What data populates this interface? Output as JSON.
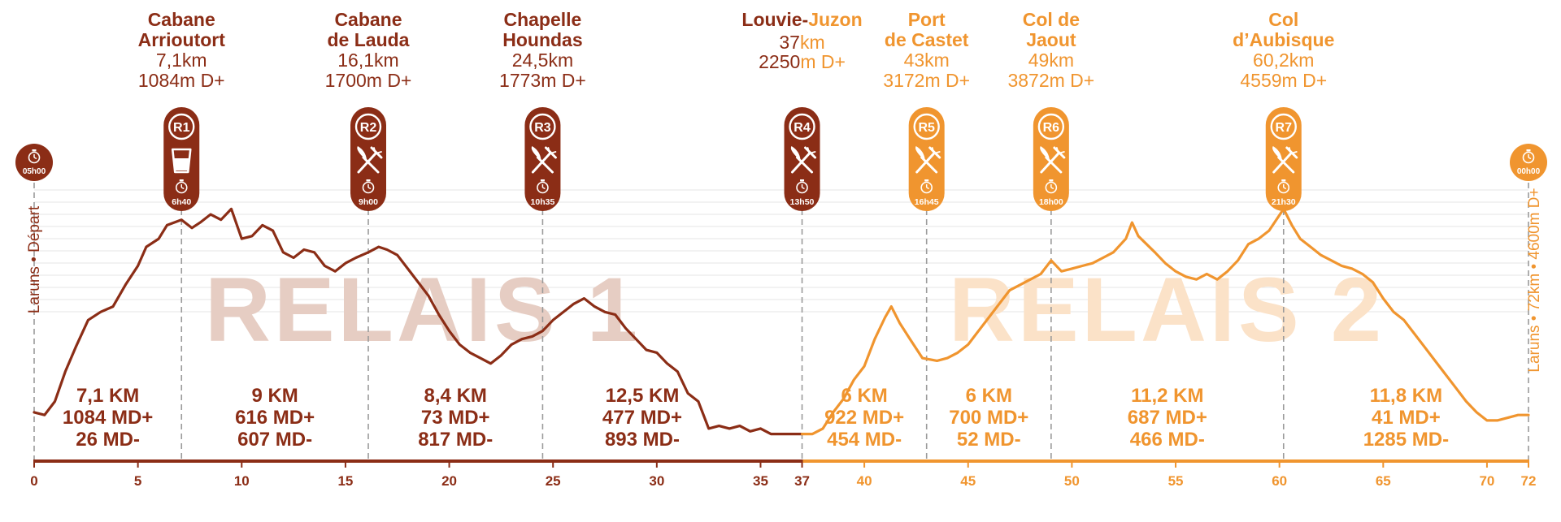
{
  "colors": {
    "relay1": "#8b2d16",
    "relay2": "#f0952f",
    "watermark1": "#e6cdc3",
    "watermark2": "#fbe2c8",
    "grid": "#e6e6e6",
    "marker_line": "#9a9a9a"
  },
  "chart_data": {
    "type": "area",
    "xlim": [
      0,
      72
    ],
    "ylim": [
      0,
      4600
    ],
    "grid": true,
    "watermarks": [
      "RELAIS 1",
      "RELAIS 2"
    ],
    "relay_split_km": 37,
    "x_ticks": [
      "0",
      "5",
      "10",
      "15",
      "20",
      "25",
      "30",
      "35",
      "37",
      "40",
      "45",
      "50",
      "55",
      "60",
      "65",
      "70",
      "72"
    ],
    "left_axis_label": "Laruns • Départ",
    "right_axis_label": "Laruns • 72km • 4600m D+",
    "profile": [
      [
        0,
        0.18
      ],
      [
        0.5,
        0.17
      ],
      [
        1,
        0.22
      ],
      [
        1.5,
        0.33
      ],
      [
        2,
        0.42
      ],
      [
        2.6,
        0.52
      ],
      [
        3.2,
        0.55
      ],
      [
        3.8,
        0.57
      ],
      [
        4.4,
        0.65
      ],
      [
        5,
        0.72
      ],
      [
        5.4,
        0.79
      ],
      [
        6,
        0.82
      ],
      [
        6.4,
        0.87
      ],
      [
        7.1,
        0.89
      ],
      [
        7.6,
        0.86
      ],
      [
        8,
        0.88
      ],
      [
        8.5,
        0.91
      ],
      [
        9,
        0.89
      ],
      [
        9.5,
        0.93
      ],
      [
        10,
        0.82
      ],
      [
        10.5,
        0.83
      ],
      [
        11,
        0.87
      ],
      [
        11.5,
        0.85
      ],
      [
        12,
        0.77
      ],
      [
        12.5,
        0.75
      ],
      [
        13,
        0.78
      ],
      [
        13.5,
        0.77
      ],
      [
        14,
        0.72
      ],
      [
        14.5,
        0.7
      ],
      [
        15,
        0.73
      ],
      [
        15.5,
        0.75
      ],
      [
        16.1,
        0.77
      ],
      [
        16.6,
        0.79
      ],
      [
        17,
        0.78
      ],
      [
        17.5,
        0.76
      ],
      [
        18,
        0.71
      ],
      [
        18.5,
        0.66
      ],
      [
        19,
        0.61
      ],
      [
        19.5,
        0.54
      ],
      [
        20,
        0.48
      ],
      [
        20.5,
        0.43
      ],
      [
        21,
        0.4
      ],
      [
        21.5,
        0.38
      ],
      [
        22,
        0.36
      ],
      [
        22.5,
        0.39
      ],
      [
        23,
        0.43
      ],
      [
        23.5,
        0.45
      ],
      [
        24,
        0.46
      ],
      [
        24.5,
        0.48
      ],
      [
        25,
        0.52
      ],
      [
        25.5,
        0.55
      ],
      [
        26,
        0.58
      ],
      [
        26.5,
        0.6
      ],
      [
        27,
        0.57
      ],
      [
        27.5,
        0.55
      ],
      [
        28,
        0.54
      ],
      [
        28.5,
        0.49
      ],
      [
        29,
        0.45
      ],
      [
        29.5,
        0.41
      ],
      [
        30,
        0.4
      ],
      [
        30.5,
        0.36
      ],
      [
        31,
        0.33
      ],
      [
        31.5,
        0.25
      ],
      [
        32,
        0.22
      ],
      [
        32.5,
        0.12
      ],
      [
        33,
        0.13
      ],
      [
        33.5,
        0.12
      ],
      [
        34,
        0.13
      ],
      [
        34.5,
        0.11
      ],
      [
        35,
        0.12
      ],
      [
        35.5,
        0.1
      ],
      [
        36,
        0.1
      ],
      [
        37,
        0.1
      ],
      [
        37.5,
        0.1
      ],
      [
        38,
        0.12
      ],
      [
        38.5,
        0.18
      ],
      [
        39,
        0.23
      ],
      [
        39.5,
        0.3
      ],
      [
        40,
        0.35
      ],
      [
        40.5,
        0.45
      ],
      [
        41,
        0.53
      ],
      [
        41.3,
        0.57
      ],
      [
        41.7,
        0.51
      ],
      [
        42.2,
        0.45
      ],
      [
        42.8,
        0.38
      ],
      [
        43.5,
        0.37
      ],
      [
        44,
        0.38
      ],
      [
        44.5,
        0.4
      ],
      [
        45,
        0.43
      ],
      [
        45.5,
        0.48
      ],
      [
        46,
        0.53
      ],
      [
        46.5,
        0.58
      ],
      [
        47,
        0.63
      ],
      [
        47.5,
        0.65
      ],
      [
        48,
        0.67
      ],
      [
        48.5,
        0.69
      ],
      [
        49,
        0.74
      ],
      [
        49.5,
        0.7
      ],
      [
        50,
        0.71
      ],
      [
        50.5,
        0.72
      ],
      [
        51,
        0.73
      ],
      [
        51.5,
        0.75
      ],
      [
        52,
        0.77
      ],
      [
        52.6,
        0.82
      ],
      [
        52.9,
        0.88
      ],
      [
        53.2,
        0.83
      ],
      [
        53.6,
        0.8
      ],
      [
        54,
        0.77
      ],
      [
        54.5,
        0.73
      ],
      [
        55,
        0.7
      ],
      [
        55.5,
        0.68
      ],
      [
        56,
        0.67
      ],
      [
        56.5,
        0.69
      ],
      [
        57,
        0.67
      ],
      [
        57.5,
        0.7
      ],
      [
        58,
        0.74
      ],
      [
        58.5,
        0.8
      ],
      [
        59,
        0.82
      ],
      [
        59.5,
        0.85
      ],
      [
        60.2,
        0.93
      ],
      [
        60.6,
        0.87
      ],
      [
        61,
        0.82
      ],
      [
        61.5,
        0.79
      ],
      [
        62,
        0.76
      ],
      [
        62.5,
        0.74
      ],
      [
        63,
        0.72
      ],
      [
        63.5,
        0.71
      ],
      [
        64,
        0.69
      ],
      [
        64.5,
        0.66
      ],
      [
        65,
        0.6
      ],
      [
        65.5,
        0.55
      ],
      [
        66,
        0.52
      ],
      [
        66.5,
        0.47
      ],
      [
        67,
        0.42
      ],
      [
        67.5,
        0.37
      ],
      [
        68,
        0.32
      ],
      [
        68.5,
        0.27
      ],
      [
        69,
        0.22
      ],
      [
        69.5,
        0.18
      ],
      [
        70,
        0.15
      ],
      [
        70.5,
        0.15
      ],
      [
        71,
        0.16
      ],
      [
        71.5,
        0.17
      ],
      [
        72,
        0.17
      ]
    ],
    "start": {
      "km": 0,
      "time": "05h00"
    },
    "finish": {
      "km": 72,
      "time": "00h00"
    },
    "stations": [
      {
        "id": "R1",
        "km": 7.1,
        "name_lines": [
          "Cabane",
          "Arrioutort"
        ],
        "dist": "7,1km",
        "dplus": "1084m D+",
        "service": "drink",
        "time": "6h40",
        "relay": 1
      },
      {
        "id": "R2",
        "km": 16.1,
        "name_lines": [
          "Cabane",
          "de Lauda"
        ],
        "dist": "16,1km",
        "dplus": "1700m D+",
        "service": "food",
        "time": "9h00",
        "relay": 1
      },
      {
        "id": "R3",
        "km": 24.5,
        "name_lines": [
          "Chapelle",
          "Houndas"
        ],
        "dist": "24,5km",
        "dplus": "1773m D+",
        "service": "food",
        "time": "10h35",
        "relay": 1
      },
      {
        "id": "R4",
        "km": 37,
        "name_parts": [
          "Louvie-",
          "Juzon"
        ],
        "dist_parts": [
          "37",
          "km"
        ],
        "dplus_parts": [
          "2250",
          "m D+"
        ],
        "service": "food",
        "time": "13h50",
        "relay": "split"
      },
      {
        "id": "R5",
        "km": 43,
        "name_lines": [
          "Port",
          "de Castet"
        ],
        "dist": "43km",
        "dplus": "3172m D+",
        "service": "food",
        "time": "16h45",
        "relay": 2
      },
      {
        "id": "R6",
        "km": 49,
        "name_lines": [
          "Col de",
          "Jaout"
        ],
        "dist": "49km",
        "dplus": "3872m D+",
        "service": "food",
        "time": "18h00",
        "relay": 2
      },
      {
        "id": "R7",
        "km": 60.2,
        "name_lines": [
          "Col",
          "d’Aubisque"
        ],
        "dist": "60,2km",
        "dplus": "4559m D+",
        "service": "food",
        "time": "21h30",
        "relay": 2
      }
    ],
    "segments": [
      {
        "center_km": 3.55,
        "relay": 1,
        "dist": "7,1 KM",
        "dplus": "1084 MD+",
        "dminus": "26 MD-"
      },
      {
        "center_km": 11.6,
        "relay": 1,
        "dist": "9 KM",
        "dplus": "616 MD+",
        "dminus": "607 MD-"
      },
      {
        "center_km": 20.3,
        "relay": 1,
        "dist": "8,4 KM",
        "dplus": "73 MD+",
        "dminus": "817 MD-"
      },
      {
        "center_km": 29.3,
        "relay": 1,
        "dist": "12,5 KM",
        "dplus": "477 MD+",
        "dminus": "893 MD-"
      },
      {
        "center_km": 40,
        "relay": 2,
        "dist": "6 KM",
        "dplus": "922 MD+",
        "dminus": "454 MD-"
      },
      {
        "center_km": 46,
        "relay": 2,
        "dist": "6 KM",
        "dplus": "700 MD+",
        "dminus": "52 MD-"
      },
      {
        "center_km": 54.6,
        "relay": 2,
        "dist": "11,2 KM",
        "dplus": "687 MD+",
        "dminus": "466 MD-"
      },
      {
        "center_km": 66.1,
        "relay": 2,
        "dist": "11,8 KM",
        "dplus": "41 MD+",
        "dminus": "1285 MD-"
      }
    ]
  }
}
